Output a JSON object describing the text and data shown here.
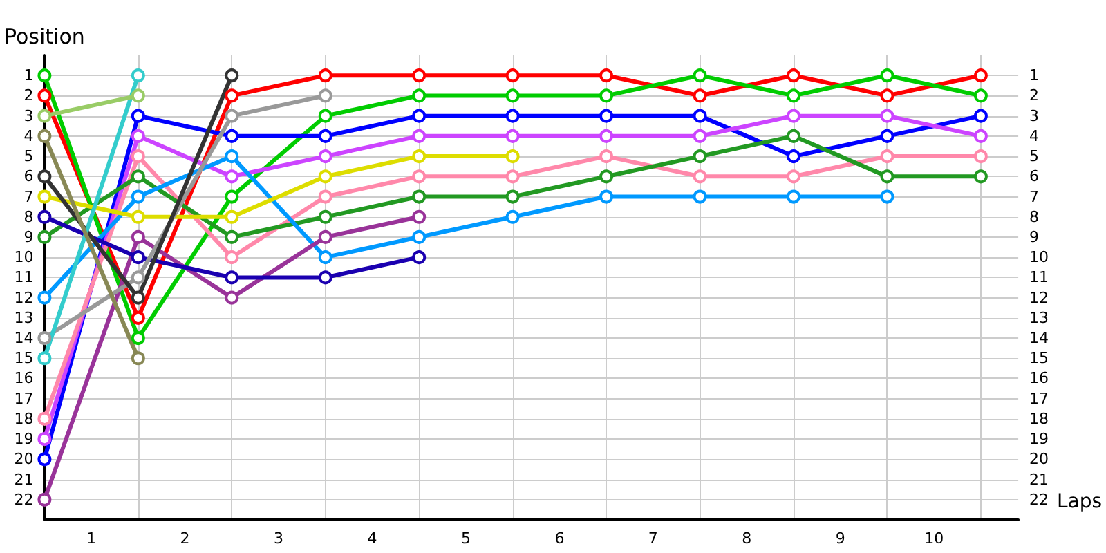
{
  "chart_data": {
    "type": "line",
    "xlabel": "Laps",
    "ylabel": "Position",
    "x": [
      0,
      1,
      2,
      3,
      4,
      5,
      6,
      7,
      8,
      9,
      10
    ],
    "xlim": [
      0,
      10.4
    ],
    "xticks": [
      {
        "value": 0.5,
        "label": "1"
      },
      {
        "value": 1.5,
        "label": "2"
      },
      {
        "value": 2.5,
        "label": "3"
      },
      {
        "value": 3.5,
        "label": "4"
      },
      {
        "value": 4.5,
        "label": "5"
      },
      {
        "value": 5.5,
        "label": "6"
      },
      {
        "value": 6.5,
        "label": "7"
      },
      {
        "value": 7.5,
        "label": "8"
      },
      {
        "value": 8.5,
        "label": "9"
      },
      {
        "value": 9.5,
        "label": "10"
      },
      {
        "value": 1,
        "label": null
      },
      {
        "value": 2,
        "label": null
      },
      {
        "value": 3,
        "label": null
      },
      {
        "value": 4,
        "label": null
      },
      {
        "value": 5,
        "label": null
      },
      {
        "value": 6,
        "label": null
      },
      {
        "value": 7,
        "label": null
      },
      {
        "value": 8,
        "label": null
      },
      {
        "value": 9,
        "label": null
      },
      {
        "value": 10,
        "label": null
      }
    ],
    "ylim": [
      23,
      0
    ],
    "yticks": [
      1,
      2,
      3,
      4,
      5,
      6,
      7,
      8,
      9,
      10,
      11,
      12,
      13,
      14,
      15,
      16,
      17,
      18,
      19,
      20,
      21,
      22
    ],
    "y2lim": [
      23,
      0
    ],
    "y2ticks": [
      1,
      2,
      3,
      4,
      5,
      6,
      7,
      8,
      9,
      10,
      11,
      12,
      13,
      14,
      15,
      16,
      17,
      18,
      19,
      20,
      21,
      22
    ],
    "grid": true,
    "marker": "circle",
    "line_style": "solid",
    "series": [
      {
        "color": "#ff0000",
        "values": [
          2,
          13,
          2,
          1,
          1,
          1,
          1,
          2,
          1,
          2,
          1
        ]
      },
      {
        "color": "#00cc00",
        "values": [
          1,
          14,
          7,
          3,
          2,
          2,
          2,
          1,
          2,
          1,
          2
        ]
      },
      {
        "color": "#0000ff",
        "values": [
          20,
          3,
          4,
          4,
          3,
          3,
          3,
          3,
          5,
          4,
          3
        ]
      },
      {
        "color": "#cc44ff",
        "values": [
          19,
          4,
          6,
          5,
          4,
          4,
          4,
          4,
          3,
          3,
          4
        ]
      },
      {
        "color": "#ff88aa",
        "values": [
          18,
          5,
          10,
          7,
          6,
          6,
          5,
          6,
          6,
          5,
          5
        ]
      },
      {
        "color": "#229922",
        "values": [
          9,
          6,
          9,
          8,
          7,
          7,
          6,
          5,
          4,
          6,
          6
        ]
      },
      {
        "color": "#0099ff",
        "values": [
          12,
          7,
          5,
          10,
          9,
          8,
          7,
          7,
          7,
          7,
          null
        ]
      },
      {
        "color": "#dddd00",
        "values": [
          7,
          8,
          8,
          6,
          5,
          5,
          null,
          null,
          null,
          null,
          null
        ]
      },
      {
        "color": "#993399",
        "values": [
          22,
          9,
          12,
          9,
          8,
          null,
          null,
          null,
          null,
          null,
          null
        ]
      },
      {
        "color": "#1a00b0",
        "values": [
          8,
          10,
          11,
          11,
          10,
          null,
          null,
          null,
          null,
          null,
          null
        ]
      },
      {
        "color": "#999999",
        "values": [
          14,
          11,
          3,
          2,
          null,
          null,
          null,
          null,
          null,
          null,
          null
        ]
      },
      {
        "color": "#333333",
        "values": [
          6,
          12,
          1,
          null,
          null,
          null,
          null,
          null,
          null,
          null,
          null
        ]
      },
      {
        "color": "#33cccc",
        "values": [
          15,
          1,
          null,
          null,
          null,
          null,
          null,
          null,
          null,
          null,
          null
        ]
      },
      {
        "color": "#99cc66",
        "values": [
          3,
          2,
          null,
          null,
          null,
          null,
          null,
          null,
          null,
          null,
          null
        ]
      },
      {
        "color": "#888855",
        "values": [
          4,
          15,
          null,
          null,
          null,
          null,
          null,
          null,
          null,
          null,
          null
        ]
      }
    ]
  }
}
